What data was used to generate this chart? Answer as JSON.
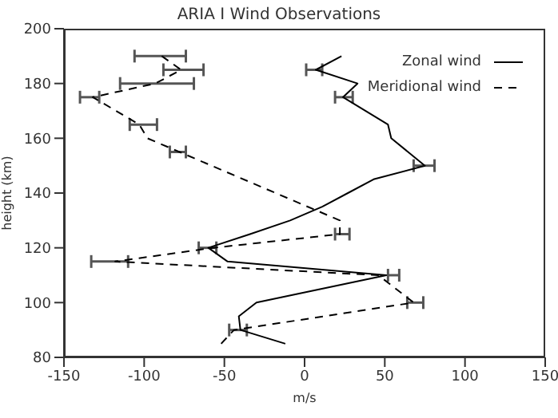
{
  "chart_data": {
    "type": "line",
    "title": "ARIA I Wind Observations",
    "xlabel": "m/s",
    "ylabel": "height (km)",
    "xlim": [
      -150,
      150
    ],
    "xticks": [
      -150,
      -100,
      -50,
      0,
      50,
      100,
      150
    ],
    "ylim": [
      80,
      200
    ],
    "yticks": [
      80,
      100,
      120,
      140,
      160,
      180,
      200
    ],
    "legend": "top right",
    "marker": "none",
    "series": [
      {
        "name": "Zonal wind",
        "color": "#000000",
        "line_style": "solid",
        "x": [
          -12,
          -40,
          -41,
          -30,
          51,
          -48,
          -60,
          -34,
          -9,
          11,
          27,
          43,
          75,
          54,
          52,
          24,
          33,
          7,
          23
        ],
        "values": [
          85,
          90,
          95,
          100,
          110,
          115,
          120,
          125,
          130,
          135,
          140,
          145,
          150,
          160,
          165,
          175,
          180,
          185,
          190
        ],
        "xerrors": [
          null,
          null,
          null,
          null,
          [
            52,
            59
          ],
          null,
          null,
          null,
          null,
          null,
          null,
          null,
          [
            68,
            81
          ],
          null,
          null,
          [
            19,
            30
          ],
          null,
          [
            1,
            11
          ],
          null
        ]
      },
      {
        "name": "Meridional wind",
        "color": "#000000",
        "line_style": "dashed",
        "x": [
          -52,
          -44,
          68,
          46,
          -118,
          -57,
          22,
          22,
          -78,
          -98,
          -103,
          -132,
          -93,
          -77,
          -89
        ],
        "values": [
          85,
          90,
          100,
          110,
          115,
          120,
          125,
          130,
          155,
          160,
          165,
          175,
          180,
          185,
          190
        ],
        "xerrors": [
          null,
          [
            -47,
            -36
          ],
          [
            64,
            74
          ],
          null,
          [
            -133,
            -110
          ],
          [
            -66,
            -55
          ],
          [
            19,
            28
          ],
          null,
          [
            -84,
            -74
          ],
          null,
          [
            -109,
            -92
          ],
          [
            -140,
            -128
          ],
          [
            -115,
            -69
          ],
          [
            -88,
            -63
          ],
          [
            -106,
            -74
          ]
        ]
      }
    ]
  }
}
